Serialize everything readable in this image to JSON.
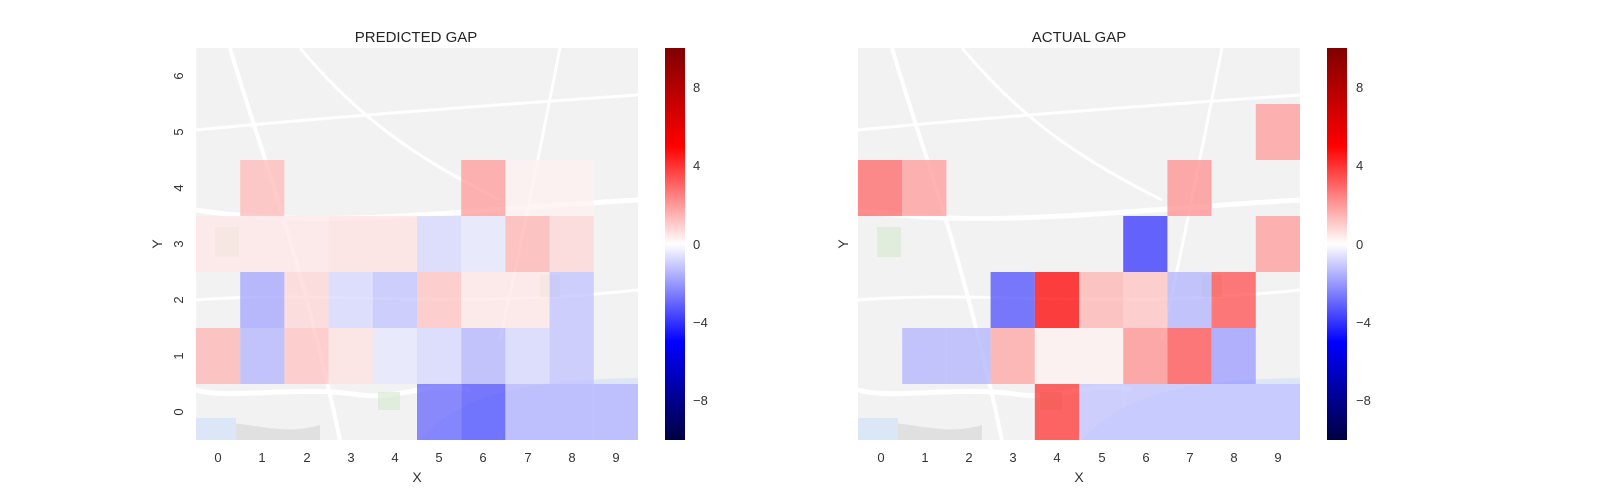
{
  "chart_data": [
    {
      "type": "heatmap",
      "title": "PREDICTED GAP",
      "xlabel": "X",
      "ylabel": "Y",
      "x_ticks": [
        "0",
        "1",
        "2",
        "3",
        "4",
        "5",
        "6",
        "7",
        "8",
        "9"
      ],
      "y_ticks": [
        "0",
        "1",
        "2",
        "3",
        "4",
        "5",
        "6"
      ],
      "colorbar_ticks": [
        "8",
        "4",
        "0",
        "−4",
        "−8"
      ],
      "colorbar_values": [
        8,
        4,
        0,
        -4,
        -8
      ],
      "vlim": [
        -10,
        10
      ],
      "colormap": "seismic",
      "background": "street map",
      "cells": [
        {
          "x": 0,
          "y": 1,
          "value": 1.5
        },
        {
          "x": 1,
          "y": 1,
          "value": -1.5
        },
        {
          "x": 2,
          "y": 1,
          "value": 1.2
        },
        {
          "x": 3,
          "y": 1,
          "value": 0.6
        },
        {
          "x": 4,
          "y": 1,
          "value": -0.5
        },
        {
          "x": 5,
          "y": 1,
          "value": -0.8
        },
        {
          "x": 6,
          "y": 1,
          "value": -1.5
        },
        {
          "x": 7,
          "y": 1,
          "value": -0.8
        },
        {
          "x": 8,
          "y": 1,
          "value": -1.2
        },
        {
          "x": 1,
          "y": 2,
          "value": -1.8
        },
        {
          "x": 2,
          "y": 2,
          "value": 0.8
        },
        {
          "x": 3,
          "y": 2,
          "value": -0.8
        },
        {
          "x": 4,
          "y": 2,
          "value": -1.2
        },
        {
          "x": 5,
          "y": 2,
          "value": 1.2
        },
        {
          "x": 6,
          "y": 2,
          "value": 0.5
        },
        {
          "x": 7,
          "y": 2,
          "value": 0.5
        },
        {
          "x": 8,
          "y": 2,
          "value": -1.2
        },
        {
          "x": 0,
          "y": 3,
          "value": 0.5
        },
        {
          "x": 1,
          "y": 3,
          "value": 0.5
        },
        {
          "x": 2,
          "y": 3,
          "value": 0.5
        },
        {
          "x": 3,
          "y": 3,
          "value": 0.6
        },
        {
          "x": 4,
          "y": 3,
          "value": 0.6
        },
        {
          "x": 5,
          "y": 3,
          "value": -0.8
        },
        {
          "x": 6,
          "y": 3,
          "value": -0.5
        },
        {
          "x": 7,
          "y": 3,
          "value": 1.5
        },
        {
          "x": 8,
          "y": 3,
          "value": 0.8
        },
        {
          "x": 1,
          "y": 4,
          "value": 1.4
        },
        {
          "x": 6,
          "y": 4,
          "value": 2.0
        },
        {
          "x": 7,
          "y": 4,
          "value": 0.3
        },
        {
          "x": 8,
          "y": 4,
          "value": 0.3
        },
        {
          "x": 5,
          "y": 0,
          "value": -3.0
        },
        {
          "x": 6,
          "y": 0,
          "value": -3.5
        },
        {
          "x": 7,
          "y": 0,
          "value": -1.5
        },
        {
          "x": 8,
          "y": 0,
          "value": -1.5
        },
        {
          "x": 9,
          "y": 0,
          "value": -1.5
        }
      ]
    },
    {
      "type": "heatmap",
      "title": "ACTUAL GAP",
      "xlabel": "X",
      "ylabel": "Y",
      "x_ticks": [
        "0",
        "1",
        "2",
        "3",
        "4",
        "5",
        "6",
        "7",
        "8",
        "9"
      ],
      "y_ticks": [
        "0",
        "1",
        "2",
        "3",
        "4",
        "5",
        "6"
      ],
      "colorbar_ticks": [
        "8",
        "4",
        "0",
        "−4",
        "−8"
      ],
      "colorbar_values": [
        8,
        4,
        0,
        -4,
        -8
      ],
      "vlim": [
        -10,
        10
      ],
      "colormap": "seismic",
      "background": "street map",
      "cells": [
        {
          "x": 4,
          "y": 0,
          "value": 4.0
        },
        {
          "x": 5,
          "y": 0,
          "value": -1.2
        },
        {
          "x": 6,
          "y": 0,
          "value": -1.2
        },
        {
          "x": 7,
          "y": 0,
          "value": -1.2
        },
        {
          "x": 8,
          "y": 0,
          "value": -1.2
        },
        {
          "x": 9,
          "y": 0,
          "value": -1.2
        },
        {
          "x": 1,
          "y": 1,
          "value": -1.5
        },
        {
          "x": 2,
          "y": 1,
          "value": -1.5
        },
        {
          "x": 3,
          "y": 1,
          "value": 1.8
        },
        {
          "x": 4,
          "y": 1,
          "value": 0.3
        },
        {
          "x": 5,
          "y": 1,
          "value": 0.3
        },
        {
          "x": 6,
          "y": 1,
          "value": 2.2
        },
        {
          "x": 7,
          "y": 1,
          "value": 3.5
        },
        {
          "x": 8,
          "y": 1,
          "value": -2.0
        },
        {
          "x": 3,
          "y": 2,
          "value": -3.5
        },
        {
          "x": 4,
          "y": 2,
          "value": 5.0
        },
        {
          "x": 5,
          "y": 2,
          "value": 1.5
        },
        {
          "x": 6,
          "y": 2,
          "value": 1.2
        },
        {
          "x": 7,
          "y": 2,
          "value": -1.5
        },
        {
          "x": 8,
          "y": 2,
          "value": 3.5
        },
        {
          "x": 6,
          "y": 3,
          "value": -4.0
        },
        {
          "x": 9,
          "y": 3,
          "value": 2.0
        },
        {
          "x": 0,
          "y": 4,
          "value": 3.0
        },
        {
          "x": 1,
          "y": 4,
          "value": 2.0
        },
        {
          "x": 7,
          "y": 4,
          "value": 2.2
        },
        {
          "x": 9,
          "y": 5,
          "value": 2.0
        }
      ]
    }
  ]
}
